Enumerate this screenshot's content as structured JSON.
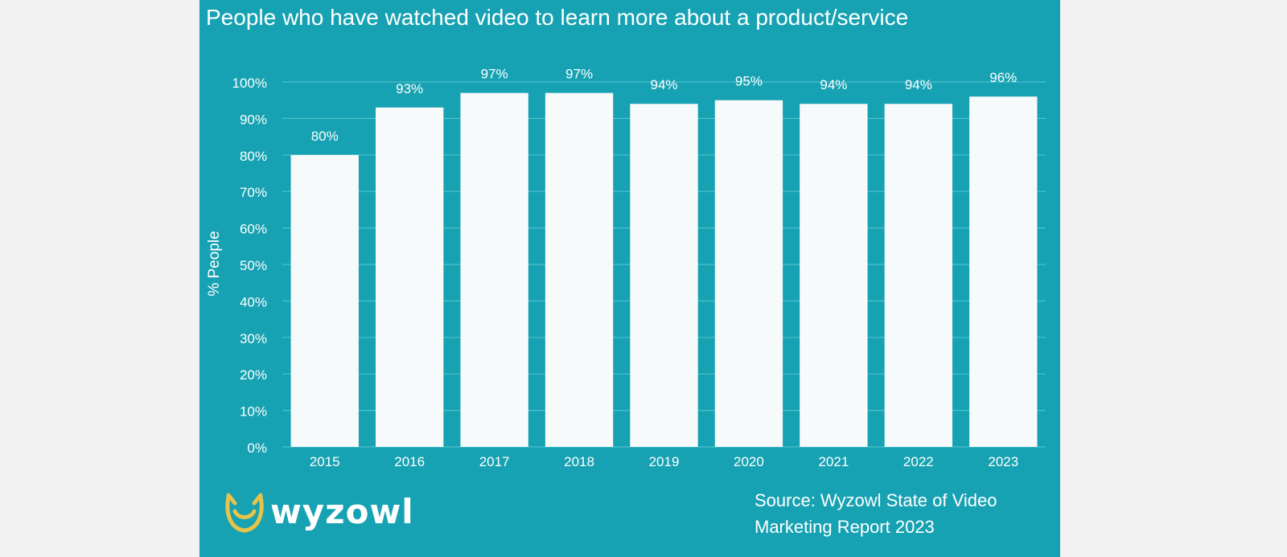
{
  "chart_data": {
    "type": "bar",
    "title": "People who have watched video to learn more about a product/service",
    "ylabel": "% People",
    "xlabel": "",
    "categories": [
      "2015",
      "2016",
      "2017",
      "2018",
      "2019",
      "2020",
      "2021",
      "2022",
      "2023"
    ],
    "values": [
      80,
      93,
      97,
      97,
      94,
      95,
      94,
      94,
      96
    ],
    "data_labels": [
      "80%",
      "93%",
      "97%",
      "97%",
      "94%",
      "95%",
      "94%",
      "94%",
      "96%"
    ],
    "ylim": [
      0,
      100
    ],
    "yticks": [
      "0%",
      "10%",
      "20%",
      "30%",
      "40%",
      "50%",
      "60%",
      "70%",
      "80%",
      "90%",
      "100%"
    ],
    "grid": true,
    "legend": "none"
  },
  "colors": {
    "background": "#16a2b2",
    "bar": "#f7fafa",
    "gridline": "#4fc0cc",
    "text": "#ffffff",
    "logo_accent": "#e8c34a"
  },
  "brand": {
    "logo_icon": "owl-icon",
    "logo_text": "wyzowl"
  },
  "source_line1": "Source: Wyzowl State of Video",
  "source_line2": "Marketing Report 2023"
}
